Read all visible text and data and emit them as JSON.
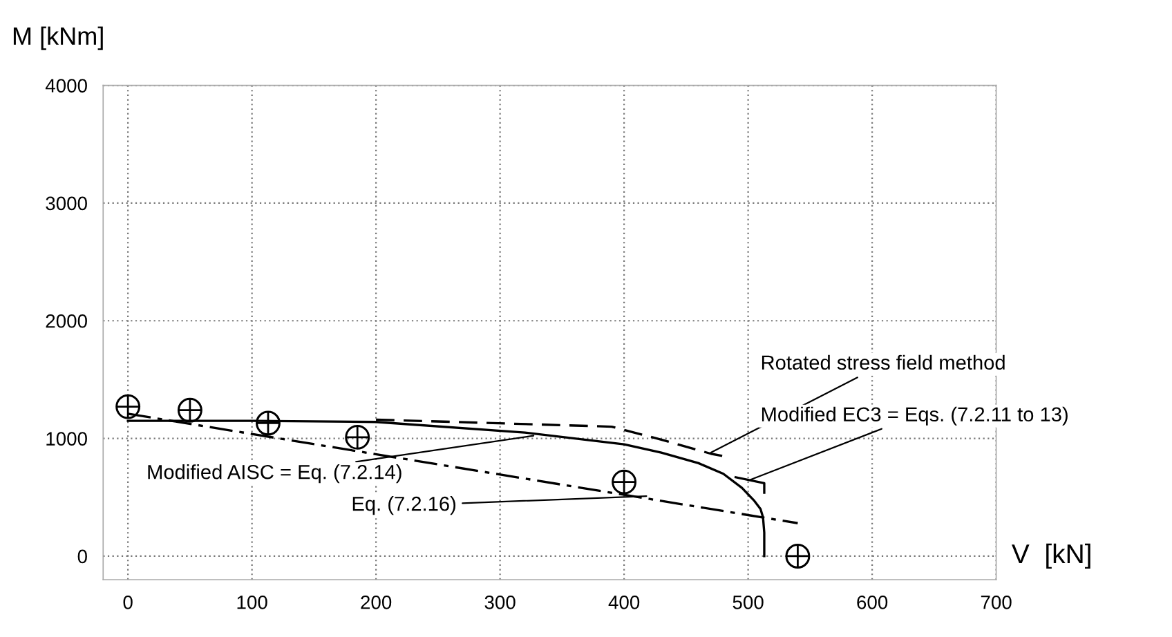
{
  "chart_data": {
    "type": "line",
    "ylabel": "M [kNm]",
    "xlabel": "V  [kN]",
    "xlim": [
      -20,
      700
    ],
    "ylim": [
      -200,
      4000
    ],
    "xticks": [
      0,
      100,
      200,
      300,
      400,
      500,
      600,
      700
    ],
    "yticks": [
      0,
      1000,
      2000,
      3000,
      4000
    ],
    "grid": true,
    "series": [
      {
        "type": "scatter",
        "marker": "circle",
        "color": "#000000",
        "x": [
          0,
          50,
          113,
          185,
          400,
          540
        ],
        "values": [
          1270,
          1240,
          1130,
          1010,
          630,
          0
        ]
      },
      {
        "line_style": "solid",
        "color": "#000000",
        "x": [
          0,
          100,
          200,
          320,
          400,
          430,
          460,
          480,
          495,
          505,
          510,
          512,
          513,
          513
        ],
        "values": [
          1150,
          1150,
          1140,
          1050,
          950,
          880,
          790,
          700,
          580,
          470,
          400,
          330,
          200,
          0
        ]
      },
      {
        "line_style": "dashdot",
        "color": "#000000",
        "x": [
          0,
          540
        ],
        "values": [
          1210,
          280
        ]
      },
      {
        "line_style": "dashed",
        "color": "#000000",
        "x": [
          200,
          390,
          430,
          470,
          480
        ],
        "values": [
          1160,
          1100,
          990,
          870,
          850
        ]
      },
      {
        "line_style": "solid",
        "color": "#000000",
        "x": [
          490,
          513,
          513
        ],
        "values": [
          670,
          620,
          540
        ]
      }
    ],
    "annotations": [
      {
        "text": "Rotated stress field method",
        "x": 470,
        "y": 880
      },
      {
        "text": "Modified EC3 = Eqs. (7.2.11 to 13)",
        "x": 502,
        "y": 650
      },
      {
        "text": "Modified AISC = Eq. (7.2.14)",
        "x": 327,
        "y": 1023
      },
      {
        "text": "Eq. (7.2.16)",
        "x": 418,
        "y": 510
      }
    ]
  }
}
